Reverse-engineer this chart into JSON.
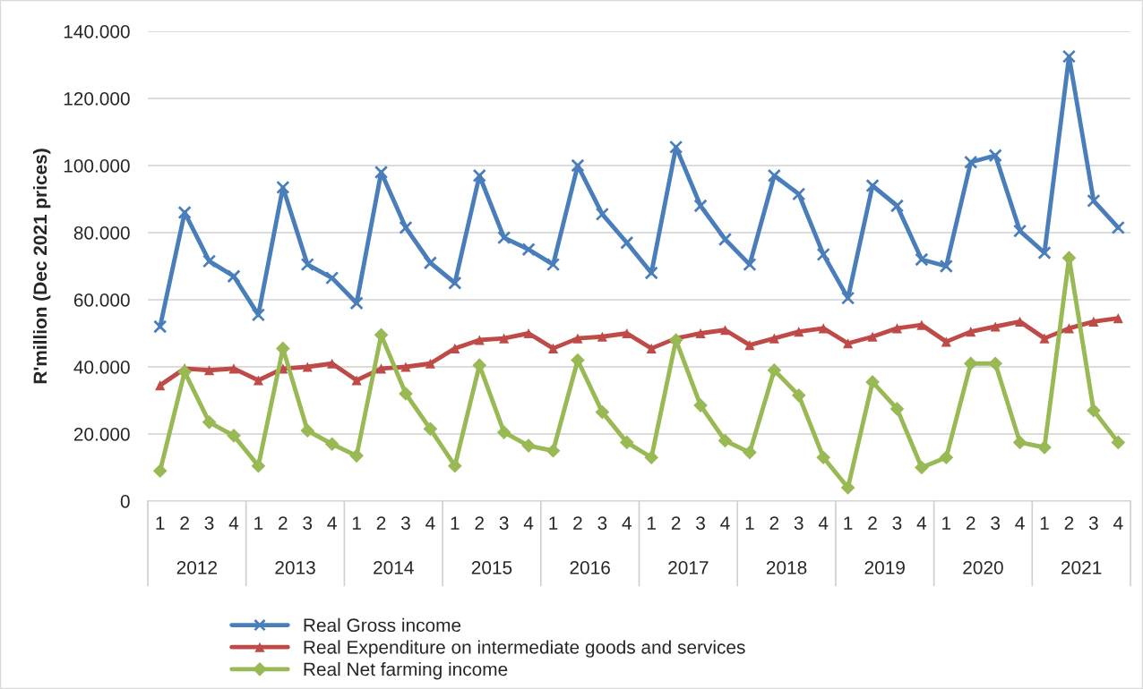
{
  "chart_data": {
    "type": "line",
    "ylabel": "R'million (Dec 2021 prices)",
    "categories": [
      "1",
      "2",
      "3",
      "4",
      "1",
      "2",
      "3",
      "4",
      "1",
      "2",
      "3",
      "4",
      "1",
      "2",
      "3",
      "4",
      "1",
      "2",
      "3",
      "4",
      "1",
      "2",
      "3",
      "4",
      "1",
      "2",
      "3",
      "4",
      "1",
      "2",
      "3",
      "4",
      "1",
      "2",
      "3",
      "4",
      "1",
      "2",
      "3",
      "4"
    ],
    "annotations": [
      "2012",
      "2013",
      "2014",
      "2015",
      "2016",
      "2017",
      "2018",
      "2019",
      "2020",
      "2021"
    ],
    "series": [
      {
        "name": "Real Gross income",
        "color": "#4a7ebb",
        "marker": "cross",
        "values": [
          52000,
          86000,
          71500,
          67000,
          55500,
          93500,
          70500,
          66500,
          59000,
          98000,
          81500,
          71000,
          65000,
          97000,
          78500,
          75000,
          70500,
          100000,
          85500,
          77000,
          68000,
          105500,
          88000,
          78000,
          70500,
          97000,
          91500,
          73500,
          60500,
          94000,
          88000,
          72000,
          70000,
          101000,
          103000,
          80500,
          74000,
          132500,
          89500,
          81500
        ]
      },
      {
        "name": "Real Expenditure on intermediate goods and services",
        "color": "#be4b48",
        "marker": "triangle",
        "values": [
          34500,
          39500,
          39000,
          39500,
          36000,
          39500,
          40000,
          41000,
          36000,
          39500,
          40000,
          41000,
          45500,
          48000,
          48500,
          50000,
          45500,
          48500,
          49000,
          50000,
          45500,
          48500,
          50000,
          51000,
          46500,
          48500,
          50500,
          51500,
          47000,
          49000,
          51500,
          52500,
          47500,
          50500,
          52000,
          53500,
          48500,
          51500,
          53500,
          54500
        ]
      },
      {
        "name": "Real Net farming income",
        "color": "#98b954",
        "marker": "diamond",
        "values": [
          9000,
          38500,
          23500,
          19500,
          10500,
          45500,
          21000,
          17000,
          13500,
          49500,
          32000,
          21500,
          10500,
          40500,
          20500,
          16500,
          15000,
          42000,
          26500,
          17500,
          13000,
          48000,
          28500,
          18000,
          14500,
          39000,
          31500,
          13000,
          4000,
          35500,
          27500,
          10000,
          13000,
          41000,
          41000,
          17500,
          16000,
          72500,
          27000,
          17500
        ]
      }
    ],
    "ylim": [
      0,
      140000
    ],
    "yticks": [
      {
        "value": 0,
        "label": "0"
      },
      {
        "value": 20000,
        "label": "20.000"
      },
      {
        "value": 40000,
        "label": "40.000"
      },
      {
        "value": 60000,
        "label": "60.000"
      },
      {
        "value": 80000,
        "label": "80.000"
      },
      {
        "value": 100000,
        "label": "100.000"
      },
      {
        "value": 120000,
        "label": "120.000"
      },
      {
        "value": 140000,
        "label": "140.000"
      }
    ],
    "grid": "y",
    "legend": "bottom",
    "line_style": "solid"
  }
}
